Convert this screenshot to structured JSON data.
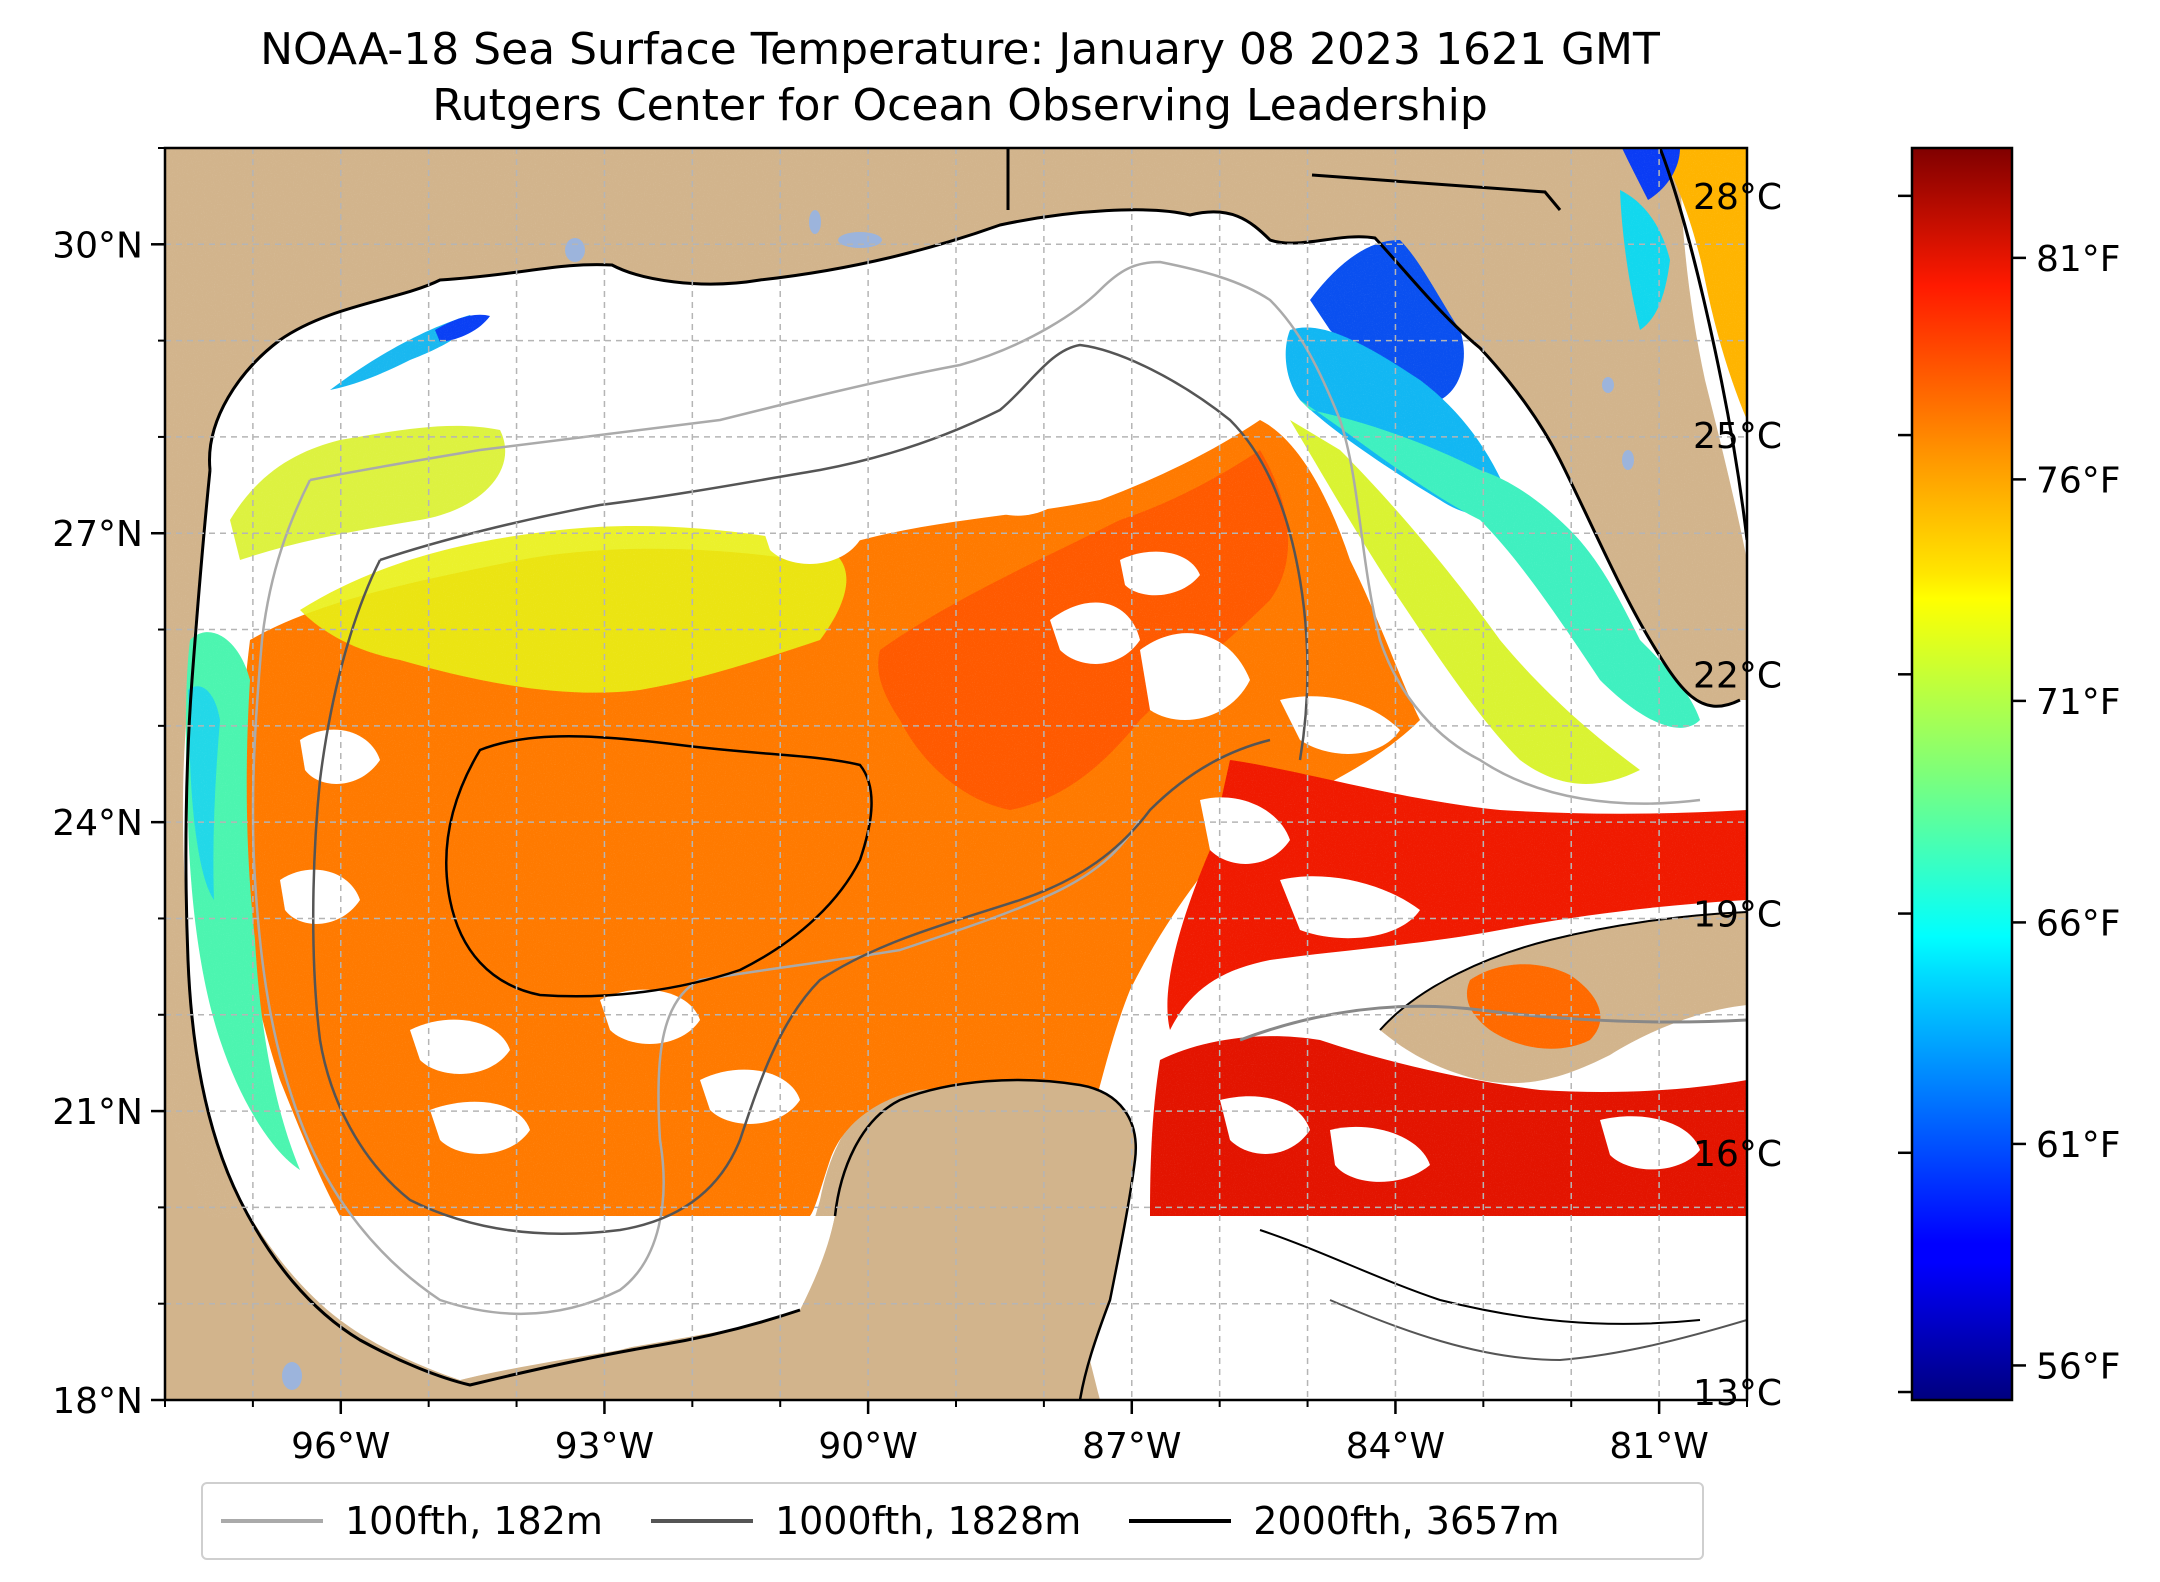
{
  "title": {
    "line1": "NOAA-18 Sea Surface Temperature: January 08 2023 1621 GMT",
    "line2": "Rutgers Center for Ocean Observing Leadership"
  },
  "map": {
    "projection_extent": {
      "lon_min": -98.0,
      "lon_max": -80.0,
      "lat_min": 18.0,
      "lat_max": 31.0
    },
    "x_ticks": [
      {
        "value": -96,
        "label": "96°W"
      },
      {
        "value": -93,
        "label": "93°W"
      },
      {
        "value": -90,
        "label": "90°W"
      },
      {
        "value": -87,
        "label": "87°W"
      },
      {
        "value": -84,
        "label": "84°W"
      },
      {
        "value": -81,
        "label": "81°W"
      }
    ],
    "y_ticks": [
      {
        "value": 18,
        "label": "18°N"
      },
      {
        "value": 21,
        "label": "21°N"
      },
      {
        "value": 24,
        "label": "24°N"
      },
      {
        "value": 27,
        "label": "27°N"
      },
      {
        "value": 30,
        "label": "30°N"
      }
    ],
    "gridlines": true,
    "colors": {
      "land": "#d2b48c",
      "no_data": "#ffffff",
      "coastline": "#000000",
      "lakes": "#9cb4dc"
    }
  },
  "colorbar": {
    "colormap": "jet",
    "celsius_ticks": [
      {
        "value": 13,
        "label": "13°C"
      },
      {
        "value": 16,
        "label": "16°C"
      },
      {
        "value": 19,
        "label": "19°C"
      },
      {
        "value": 22,
        "label": "22°C"
      },
      {
        "value": 25,
        "label": "25°C"
      },
      {
        "value": 28,
        "label": "28°C"
      }
    ],
    "fahrenheit_ticks": [
      {
        "value": 56,
        "label": "56°F"
      },
      {
        "value": 61,
        "label": "61°F"
      },
      {
        "value": 66,
        "label": "66°F"
      },
      {
        "value": 71,
        "label": "71°F"
      },
      {
        "value": 76,
        "label": "76°F"
      },
      {
        "value": 81,
        "label": "81°F"
      }
    ],
    "range_celsius": [
      12.9,
      28.6
    ]
  },
  "legend": {
    "items": [
      {
        "label": "100fth, 182m",
        "color": "#aaaaaa"
      },
      {
        "label": "1000fth, 1828m",
        "color": "#555555"
      },
      {
        "label": "2000fth, 3657m",
        "color": "#000000"
      }
    ]
  }
}
